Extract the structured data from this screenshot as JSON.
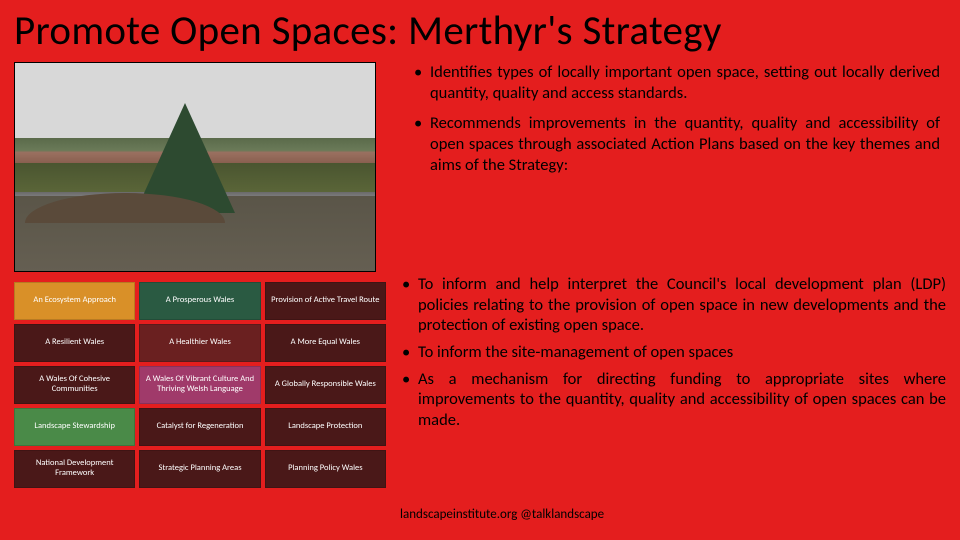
{
  "title": "Promote Open Spaces: Merthyr's Strategy",
  "bullets_upper": [
    "Identifies types of locally important open space, setting out locally derived quantity, quality and access standards.",
    "Recommends improvements in the quantity, quality and accessibility of open spaces through associated Action Plans based on the key themes and aims of the Strategy:"
  ],
  "bullets_lower": [
    "To inform and help interpret the Council's local development plan (LDP) policies relating to the provision of open space in new developments and the protection of existing open space.",
    "To inform the site-management of open spaces",
    "As a mechanism for directing funding to appropriate sites where improvements to the quantity, quality and accessibility of open spaces can be made."
  ],
  "grid": {
    "cells": [
      {
        "label": "An Ecosystem Approach",
        "bg": "#d99028"
      },
      {
        "label": "A Prosperous Wales",
        "bg": "#2a5a42"
      },
      {
        "label": "Provision of Active Travel Route",
        "bg": "#4a1818"
      },
      {
        "label": "A Resilient Wales",
        "bg": "#4a1818"
      },
      {
        "label": "A Healthier Wales",
        "bg": "#6a2020"
      },
      {
        "label": "A More Equal Wales",
        "bg": "#4a1818"
      },
      {
        "label": "A Wales Of Cohesive Communities",
        "bg": "#4a1818"
      },
      {
        "label": "A Wales Of Vibrant Culture And Thriving Welsh Language",
        "bg": "#a03a6a"
      },
      {
        "label": "A Globally Responsible Wales",
        "bg": "#4a1818"
      },
      {
        "label": "Landscape Stewardship",
        "bg": "#4a8a48"
      },
      {
        "label": "Catalyst for Regeneration",
        "bg": "#4a1818"
      },
      {
        "label": "Landscape Protection",
        "bg": "#4a1818"
      },
      {
        "label": "National Development Framework",
        "bg": "#4a1818"
      },
      {
        "label": "Strategic Planning Areas",
        "bg": "#4a1818"
      },
      {
        "label": "Planning Policy Wales",
        "bg": "#4a1818"
      }
    ]
  },
  "footer": "landscapeinstitute.org  @talklandscape"
}
